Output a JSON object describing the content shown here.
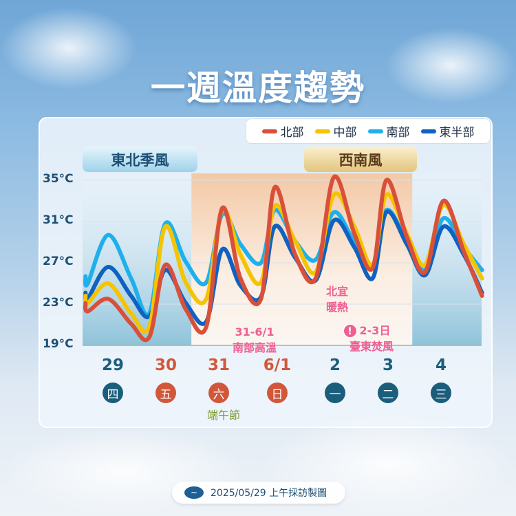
{
  "title": "一週溫度趨勢",
  "legend": [
    {
      "label": "北部",
      "color": "#d9503a"
    },
    {
      "label": "中部",
      "color": "#f5c400"
    },
    {
      "label": "南部",
      "color": "#1fb0ec"
    },
    {
      "label": "東半部",
      "color": "#0f62c0"
    }
  ],
  "regimes": {
    "left": "東北季風",
    "right": "西南風"
  },
  "annotations": {
    "north": [
      "北宜",
      "暖熱"
    ],
    "south": [
      "31-6/1",
      "南部高溫"
    ],
    "east": [
      "2-3日",
      "臺東焚風"
    ],
    "holiday": "端午節",
    "alert_icon": "exclamation-circle-icon"
  },
  "footer": {
    "text": "2025/05/29 上午採訪製圖",
    "logo_icon": "cwa-logo-icon"
  },
  "chart_data": {
    "type": "line",
    "ylim": [
      19,
      35
    ],
    "yticks": [
      "35°C",
      "31°C",
      "27°C",
      "23°C",
      "19°C"
    ],
    "grid": true,
    "legend_position": "top-right",
    "categories": [
      {
        "date": "29",
        "weekday": "四",
        "color": "#1a5e7c"
      },
      {
        "date": "30",
        "weekday": "五",
        "color": "#d0573a"
      },
      {
        "date": "31",
        "weekday": "六",
        "color": "#d0573a"
      },
      {
        "date": "6/1",
        "weekday": "日",
        "color": "#d0573a"
      },
      {
        "date": "2",
        "weekday": "一",
        "color": "#1a5e7c"
      },
      {
        "date": "3",
        "weekday": "二",
        "color": "#1a5e7c"
      },
      {
        "date": "4",
        "weekday": "三",
        "color": "#1a5e7c"
      }
    ],
    "highlight_range": [
      "05-31",
      "06-03"
    ],
    "x": [
      "05-29T00",
      "05-29T01",
      "05-29T10",
      "05-29T20",
      "05-30T04",
      "05-30T11",
      "05-30T20",
      "05-31T05",
      "05-31T12",
      "05-31T20",
      "06-01T05",
      "06-01T11",
      "06-01T20",
      "06-02T05",
      "06-02T13",
      "06-02T22",
      "06-03T06",
      "06-03T12",
      "06-03T21",
      "06-04T05",
      "06-04T13",
      "06-04T22",
      "06-05T06"
    ],
    "series": [
      {
        "name": "南部",
        "values": [
          25.7,
          25,
          29.7,
          25.5,
          22.1,
          30.8,
          27.1,
          25.1,
          31.7,
          28.8,
          27,
          32.1,
          29.1,
          27.3,
          31.9,
          29,
          26.8,
          32.1,
          29.1,
          26.3,
          31.3,
          28.5,
          26.3
        ]
      },
      {
        "name": "東半部",
        "values": [
          24.1,
          23.5,
          26.6,
          23.8,
          21.8,
          26.3,
          23.1,
          21.3,
          28.3,
          24.8,
          23.7,
          30.5,
          27.5,
          25.3,
          31.1,
          28.5,
          25.5,
          31.9,
          28.8,
          25.8,
          30.5,
          27.8,
          24.1
        ]
      },
      {
        "name": "中部",
        "values": [
          23.8,
          23.1,
          25,
          22.1,
          20.8,
          30.5,
          25.1,
          23.5,
          32.1,
          27.8,
          25.1,
          32.5,
          29.1,
          26.1,
          33.6,
          30.5,
          26.8,
          33.6,
          29.8,
          26.8,
          32.6,
          28.8,
          25.5
        ]
      },
      {
        "name": "北部",
        "values": [
          23.1,
          22.3,
          23.5,
          21.1,
          19.8,
          26.8,
          22.5,
          20.8,
          32.3,
          25.5,
          23.5,
          34.3,
          27.8,
          25.5,
          35.3,
          29.8,
          26.5,
          35,
          29.5,
          26.1,
          33,
          28.1,
          23.8
        ]
      }
    ]
  }
}
